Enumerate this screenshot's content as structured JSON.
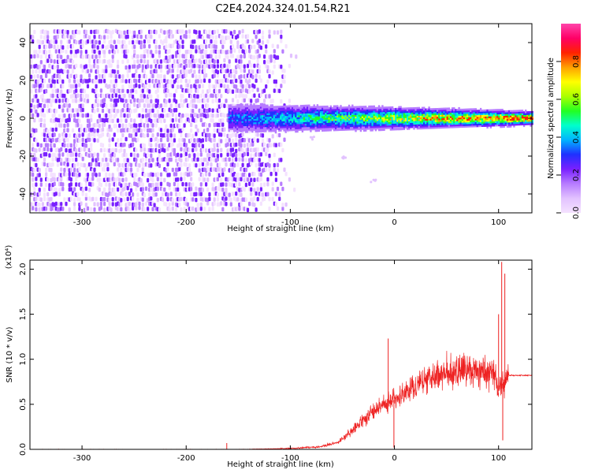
{
  "title": "C2E4.2024.324.01.54.R21",
  "colors": {
    "snr_line": "#ee2222",
    "noise_purple": "#7a20ff",
    "colormap": [
      "#f4e2ff",
      "#e2c2ff",
      "#b77cff",
      "#7a20ff",
      "#2030ff",
      "#00b4ff",
      "#00ffcc",
      "#22ff22",
      "#aaff00",
      "#ffff00",
      "#ffa000",
      "#ff2200",
      "#ff0066",
      "#ff44aa"
    ]
  },
  "chart_data": [
    {
      "type": "heatmap",
      "name": "spectrogram",
      "title": "C2E4.2024.324.01.54.R21",
      "xlabel": "Height of straight line (km)",
      "ylabel": "Frequency (Hz)",
      "xlim": [
        -350,
        132
      ],
      "ylim": [
        -50,
        50
      ],
      "xticks": [
        -300,
        -200,
        -100,
        0,
        100
      ],
      "yticks": [
        -40,
        -20,
        0,
        20,
        40
      ],
      "colorbar": {
        "label": "Normalized spectral amplitude",
        "range": [
          0,
          1
        ],
        "ticks": [
          "0.0",
          "0.2",
          "0.4",
          "0.6",
          "0.8"
        ],
        "tick_values": [
          0,
          0.2,
          0.4,
          0.6,
          0.8
        ]
      },
      "features": {
        "noise_region_x": [
          -350,
          -140
        ],
        "fading_noise_x": [
          -140,
          -95
        ],
        "signal_band_start_x": -160,
        "signal_center_hz": 0,
        "signal_halfwidth_hz_start": 7,
        "signal_halfwidth_hz_end": 3,
        "faint_tail": [
          [
            -80,
            -10
          ],
          [
            -50,
            -20
          ],
          [
            -20,
            -32
          ]
        ]
      },
      "grid": false
    },
    {
      "type": "line",
      "name": "snr",
      "xlabel": "Height of straight line (km)",
      "ylabel": "SNR (10 * v/v)",
      "y_multiplier": "(x10⁴)",
      "xlim": [
        -350,
        132
      ],
      "ylim": [
        0,
        2.1
      ],
      "xticks": [
        -300,
        -200,
        -100,
        0,
        100
      ],
      "yticks": [
        "0.0",
        "0.5",
        "1.0",
        "1.5",
        "2.0"
      ],
      "ytick_values": [
        0,
        0.5,
        1.0,
        1.5,
        2.0
      ],
      "envelope": {
        "x": [
          -350,
          -150,
          -100,
          -70,
          -55,
          -45,
          -35,
          -20,
          -10,
          0,
          10,
          25,
          40,
          55,
          70,
          85,
          95,
          100,
          105,
          110,
          132
        ],
        "y": [
          0.0,
          0.0,
          0.01,
          0.03,
          0.08,
          0.16,
          0.28,
          0.42,
          0.5,
          0.55,
          0.62,
          0.74,
          0.82,
          0.86,
          0.87,
          0.88,
          0.86,
          0.65,
          0.75,
          0.82,
          0.82
        ]
      },
      "spikes": [
        {
          "x": -161,
          "y": 0.07
        },
        {
          "x": -6,
          "y": 1.23
        },
        {
          "x": -0.5,
          "y": 0.02
        },
        {
          "x": 100,
          "y": 1.5
        },
        {
          "x": 103,
          "y": 2.08
        },
        {
          "x": 104,
          "y": 0.1
        },
        {
          "x": 106,
          "y": 1.95
        }
      ],
      "grid": false
    }
  ]
}
